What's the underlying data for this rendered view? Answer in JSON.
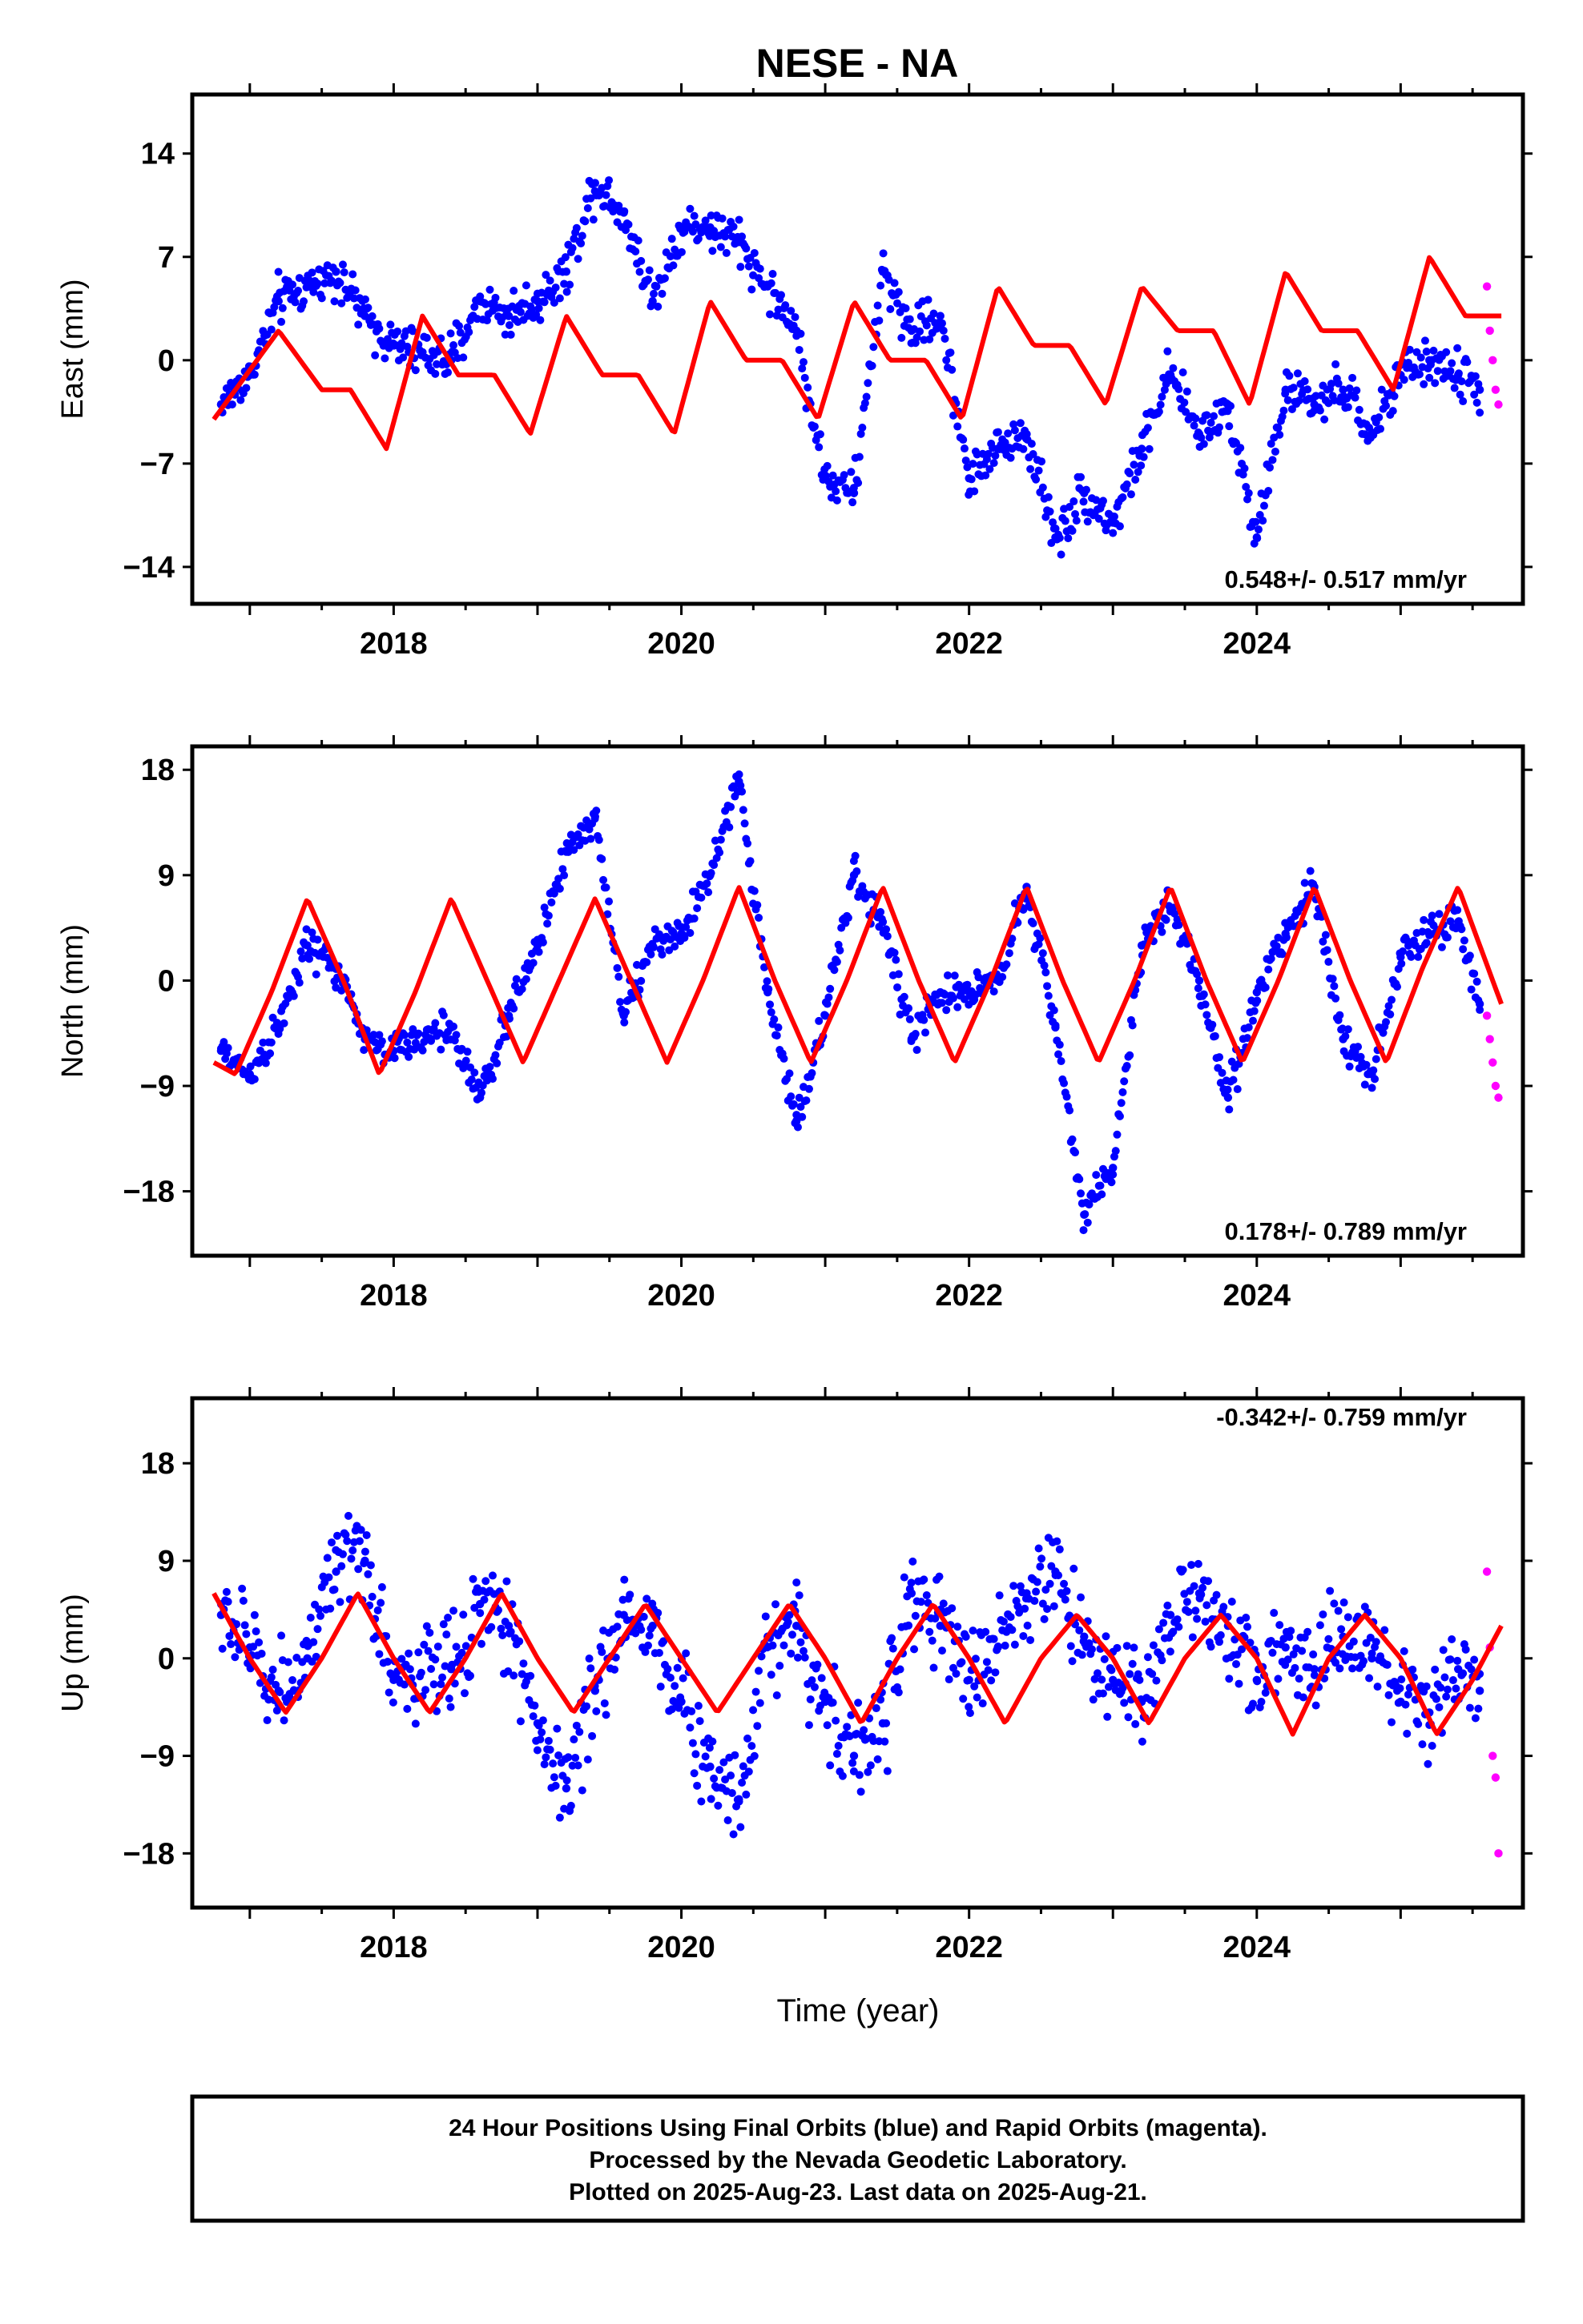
{
  "title": "NESE - NA",
  "colors": {
    "final": "#0000ff",
    "rapid": "#ff00ff",
    "model": "#ff0000",
    "axes": "#000000"
  },
  "chart_data": [
    {
      "type": "scatter",
      "ylabel": "East (mm)",
      "xlim": [
        2016.6,
        2025.85
      ],
      "ylim": [
        -16.5,
        18
      ],
      "yticks": [
        -14,
        -7,
        0,
        7,
        14
      ],
      "ytick_labels": [
        "−14",
        "−7",
        "0",
        "7",
        "14"
      ],
      "xticks": [
        2018,
        2020,
        2022,
        2024
      ],
      "xtick_labels": [
        "2018",
        "2020",
        "2022",
        "2024"
      ],
      "rate_label": "0.548+/- 0.517 mm/yr",
      "rate_position": "bottom-right",
      "series": [
        {
          "role": "final",
          "x": [
            2016.8,
            2017.0,
            2017.2,
            2017.4,
            2017.6,
            2017.8,
            2018.0,
            2018.4,
            2018.6,
            2018.8,
            2019.0,
            2019.2,
            2019.4,
            2019.6,
            2019.8,
            2020.0,
            2020.2,
            2020.4,
            2020.6,
            2020.8,
            2021.0,
            2021.2,
            2021.4,
            2021.6,
            2021.8,
            2022.0,
            2022.2,
            2022.4,
            2022.6,
            2022.8,
            2023.0,
            2023.2,
            2023.4,
            2023.6,
            2023.8,
            2024.0,
            2024.2,
            2024.4,
            2024.6,
            2024.8,
            2025.0,
            2025.2,
            2025.4,
            2025.55
          ],
          "y": [
            -3,
            -1,
            4,
            5,
            6,
            3,
            1,
            0,
            4,
            3,
            4,
            6,
            12,
            10,
            4,
            9,
            9,
            8,
            5,
            2,
            -8,
            -9,
            6,
            2,
            3,
            -8,
            -6,
            -5,
            -12,
            -9,
            -11,
            -6,
            -1,
            -5,
            -3,
            -12,
            -2,
            -3,
            -2,
            -5,
            -1,
            0,
            -1,
            -2
          ]
        },
        {
          "role": "rapid",
          "x": [
            2025.6,
            2025.62,
            2025.64,
            2025.66,
            2025.68
          ],
          "y": [
            5,
            2,
            0,
            -2,
            -3
          ]
        },
        {
          "role": "model",
          "x": [
            2016.75,
            2017.2,
            2017.5,
            2017.7,
            2017.95,
            2018.2,
            2018.45,
            2018.7,
            2018.95,
            2019.2,
            2019.45,
            2019.7,
            2019.95,
            2020.2,
            2020.45,
            2020.7,
            2020.95,
            2021.2,
            2021.45,
            2021.7,
            2021.95,
            2022.2,
            2022.45,
            2022.7,
            2022.95,
            2023.2,
            2023.45,
            2023.7,
            2023.95,
            2024.2,
            2024.45,
            2024.7,
            2024.95,
            2025.2,
            2025.45,
            2025.7
          ],
          "y": [
            -4,
            2,
            -2,
            -2,
            -6,
            3,
            -1,
            -1,
            -5,
            3,
            -1,
            -1,
            -5,
            4,
            0,
            0,
            -4,
            4,
            0,
            0,
            -4,
            5,
            1,
            1,
            -3,
            5,
            2,
            2,
            -3,
            6,
            2,
            2,
            -2,
            7,
            3,
            3
          ]
        }
      ]
    },
    {
      "type": "scatter",
      "ylabel": "North (mm)",
      "xlim": [
        2016.6,
        2025.85
      ],
      "ylim": [
        -23.5,
        20
      ],
      "yticks": [
        -18,
        -9,
        0,
        9,
        18
      ],
      "ytick_labels": [
        "−18",
        "−9",
        "0",
        "9",
        "18"
      ],
      "xticks": [
        2018,
        2020,
        2022,
        2024
      ],
      "xtick_labels": [
        "2018",
        "2020",
        "2022",
        "2024"
      ],
      "rate_label": "0.178+/- 0.789 mm/yr",
      "rate_position": "bottom-right",
      "series": [
        {
          "role": "final",
          "x": [
            2016.8,
            2017.0,
            2017.2,
            2017.4,
            2017.6,
            2017.8,
            2018.0,
            2018.4,
            2018.6,
            2018.8,
            2019.0,
            2019.2,
            2019.4,
            2019.6,
            2019.8,
            2020.0,
            2020.2,
            2020.4,
            2020.6,
            2020.8,
            2021.0,
            2021.2,
            2021.4,
            2021.6,
            2021.8,
            2022.0,
            2022.2,
            2022.4,
            2022.6,
            2022.8,
            2023.0,
            2023.2,
            2023.4,
            2023.6,
            2023.8,
            2024.0,
            2024.2,
            2024.4,
            2024.6,
            2024.8,
            2025.0,
            2025.2,
            2025.4,
            2025.55
          ],
          "y": [
            -6,
            -8,
            -4,
            3,
            1,
            -5,
            -6,
            -4,
            -10,
            -3,
            3,
            11,
            14,
            -3,
            3,
            4,
            9,
            17,
            -1,
            -12,
            -3,
            9,
            5,
            -5,
            -1,
            -1,
            0,
            8,
            -4,
            -20,
            -16,
            3,
            6,
            0,
            -10,
            -1,
            4,
            8,
            -5,
            -8,
            2,
            4,
            5,
            -2
          ]
        },
        {
          "role": "rapid",
          "x": [
            2025.6,
            2025.62,
            2025.64,
            2025.66,
            2025.68
          ],
          "y": [
            -3,
            -5,
            -7,
            -9,
            -10
          ]
        },
        {
          "role": "model",
          "x": [
            2016.75,
            2016.9,
            2017.15,
            2017.4,
            2017.65,
            2017.9,
            2018.15,
            2018.4,
            2018.65,
            2018.9,
            2019.15,
            2019.4,
            2019.65,
            2019.9,
            2020.15,
            2020.4,
            2020.65,
            2020.9,
            2021.15,
            2021.4,
            2021.65,
            2021.9,
            2022.15,
            2022.4,
            2022.65,
            2022.9,
            2023.15,
            2023.4,
            2023.65,
            2023.9,
            2024.15,
            2024.4,
            2024.65,
            2024.9,
            2025.15,
            2025.4,
            2025.7
          ],
          "y": [
            -7,
            -8,
            -1,
            7,
            0,
            -8,
            -1,
            7,
            0,
            -7,
            0,
            7,
            0,
            -7,
            0,
            8,
            0,
            -7,
            0,
            8,
            0,
            -7,
            0,
            8,
            0,
            -7,
            0,
            8,
            0,
            -7,
            0,
            8,
            0,
            -7,
            1,
            8,
            -2
          ]
        }
      ]
    },
    {
      "type": "scatter",
      "ylabel": "Up (mm)",
      "xlabel": "Time (year)",
      "xlim": [
        2016.6,
        2025.85
      ],
      "ylim": [
        -23,
        24
      ],
      "yticks": [
        -18,
        -9,
        0,
        9,
        18
      ],
      "ytick_labels": [
        "−18",
        "−9",
        "0",
        "9",
        "18"
      ],
      "xticks": [
        2018,
        2020,
        2022,
        2024
      ],
      "xtick_labels": [
        "2018",
        "2020",
        "2022",
        "2024"
      ],
      "rate_label": "-0.342+/- 0.759 mm/yr",
      "rate_position": "top-right",
      "series": [
        {
          "role": "final",
          "x": [
            2016.8,
            2017.0,
            2017.2,
            2017.4,
            2017.6,
            2017.8,
            2018.0,
            2018.4,
            2018.6,
            2018.8,
            2019.0,
            2019.2,
            2019.4,
            2019.6,
            2019.8,
            2020.0,
            2020.2,
            2020.4,
            2020.6,
            2020.8,
            2021.0,
            2021.2,
            2021.4,
            2021.6,
            2021.8,
            2022.0,
            2022.2,
            2022.4,
            2022.6,
            2022.8,
            2023.0,
            2023.2,
            2023.4,
            2023.6,
            2023.8,
            2024.0,
            2024.2,
            2024.4,
            2024.6,
            2024.8,
            2025.0,
            2025.2,
            2025.4,
            2025.55
          ],
          "y": [
            4,
            1,
            -3,
            0,
            8,
            9,
            -2,
            -1,
            5,
            3,
            -6,
            -12,
            -3,
            4,
            3,
            -4,
            -10,
            -13,
            2,
            3,
            -4,
            -9,
            -6,
            6,
            3,
            -2,
            1,
            6,
            8,
            2,
            -2,
            -4,
            4,
            6,
            3,
            -2,
            1,
            -1,
            2,
            0,
            -4,
            -5,
            -1,
            -3
          ]
        },
        {
          "role": "rapid",
          "x": [
            2025.6,
            2025.62,
            2025.64,
            2025.66,
            2025.68
          ],
          "y": [
            8,
            1,
            -9,
            -11,
            -18
          ]
        },
        {
          "role": "model",
          "x": [
            2016.75,
            2017.0,
            2017.25,
            2017.5,
            2017.75,
            2018.0,
            2018.25,
            2018.5,
            2018.75,
            2019.0,
            2019.25,
            2019.5,
            2019.75,
            2020.0,
            2020.25,
            2020.5,
            2020.75,
            2021.0,
            2021.25,
            2021.5,
            2021.75,
            2022.0,
            2022.25,
            2022.5,
            2022.75,
            2023.0,
            2023.25,
            2023.5,
            2023.75,
            2024.0,
            2024.25,
            2024.5,
            2024.75,
            2025.0,
            2025.25,
            2025.5,
            2025.7
          ],
          "y": [
            6,
            0,
            -5,
            0,
            6,
            0,
            -5,
            0,
            6,
            0,
            -5,
            0,
            5,
            0,
            -5,
            0,
            5,
            0,
            -6,
            0,
            5,
            0,
            -6,
            0,
            4,
            0,
            -6,
            0,
            4,
            0,
            -7,
            0,
            4,
            0,
            -7,
            -2,
            3
          ]
        }
      ]
    }
  ],
  "footer": {
    "lines": [
      "24 Hour Positions Using Final Orbits (blue) and Rapid Orbits (magenta).",
      "Processed by the Nevada Geodetic Laboratory.",
      "Plotted on 2025-Aug-23. Last data on 2025-Aug-21."
    ]
  }
}
